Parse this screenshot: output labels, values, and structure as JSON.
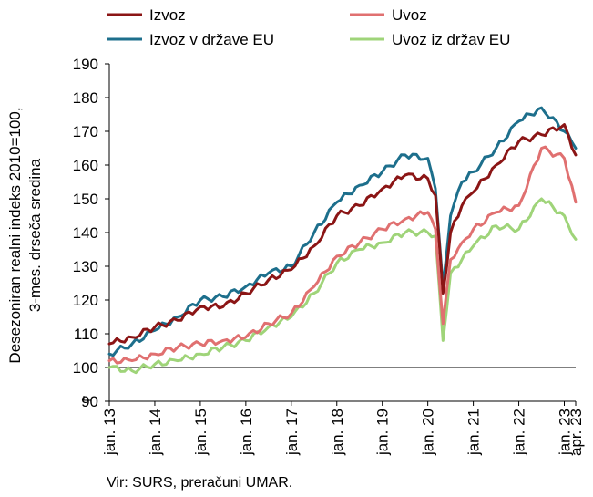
{
  "chart_data": {
    "type": "line",
    "ylabel_lines": [
      "Desezoniran realni indeks 2010=100,",
      "3-mes. drseča sredina"
    ],
    "ylim": [
      90,
      190
    ],
    "yticks": [
      90,
      100,
      110,
      120,
      130,
      140,
      150,
      160,
      170,
      180,
      190
    ],
    "x_start": "2013-01",
    "x_end": "2023-04",
    "x_ticks": [
      {
        "label": "jan. 13",
        "date": "2013-01"
      },
      {
        "label": "jan. 14",
        "date": "2014-01"
      },
      {
        "label": "jan. 15",
        "date": "2015-01"
      },
      {
        "label": "jan. 16",
        "date": "2016-01"
      },
      {
        "label": "jan. 17",
        "date": "2017-01"
      },
      {
        "label": "jan. 18",
        "date": "2018-01"
      },
      {
        "label": "jan. 19",
        "date": "2019-01"
      },
      {
        "label": "jan. 20",
        "date": "2020-01"
      },
      {
        "label": "jan. 21",
        "date": "2021-01"
      },
      {
        "label": "jan. 22",
        "date": "2022-01"
      },
      {
        "label": "jan. 23",
        "date": "2023-01"
      },
      {
        "label": "apr. 23",
        "date": "2023-04"
      }
    ],
    "reference_line": 100,
    "legend_position": "top",
    "series": [
      {
        "name": "Izvoz",
        "color": "#8b1515",
        "x_dates": [
          "2013-01",
          "2013-07",
          "2014-01",
          "2014-07",
          "2015-01",
          "2015-07",
          "2016-01",
          "2016-07",
          "2017-01",
          "2017-07",
          "2018-01",
          "2018-07",
          "2019-01",
          "2019-07",
          "2020-01",
          "2020-03",
          "2020-05",
          "2020-07",
          "2020-10",
          "2021-01",
          "2021-07",
          "2022-01",
          "2022-07",
          "2023-01",
          "2023-04"
        ],
        "values": [
          107,
          109,
          112,
          114,
          118,
          118,
          122,
          126,
          129,
          136,
          145,
          148,
          153,
          157,
          156,
          151,
          122,
          140,
          148,
          152,
          160,
          167,
          169,
          172,
          163
        ]
      },
      {
        "name": "Uvoz",
        "color": "#e07070",
        "x_dates": [
          "2013-01",
          "2013-07",
          "2014-01",
          "2014-07",
          "2015-01",
          "2015-07",
          "2016-01",
          "2016-07",
          "2017-01",
          "2017-07",
          "2018-01",
          "2018-07",
          "2019-01",
          "2019-07",
          "2020-01",
          "2020-03",
          "2020-05",
          "2020-07",
          "2020-10",
          "2021-01",
          "2021-07",
          "2022-01",
          "2022-07",
          "2023-01",
          "2023-04"
        ],
        "values": [
          102,
          102,
          104,
          106,
          107,
          108,
          109,
          113,
          116,
          124,
          133,
          137,
          141,
          144,
          146,
          141,
          113,
          132,
          137,
          141,
          146,
          148,
          165,
          162,
          149
        ]
      },
      {
        "name": "Izvoz v države EU",
        "color": "#1d6f8c",
        "x_dates": [
          "2013-01",
          "2013-07",
          "2014-01",
          "2014-07",
          "2015-01",
          "2015-07",
          "2016-01",
          "2016-07",
          "2017-01",
          "2017-07",
          "2018-01",
          "2018-07",
          "2019-01",
          "2019-07",
          "2020-01",
          "2020-03",
          "2020-05",
          "2020-07",
          "2020-10",
          "2021-01",
          "2021-07",
          "2022-01",
          "2022-07",
          "2023-01",
          "2023-04"
        ],
        "values": [
          104,
          107,
          111,
          115,
          120,
          121,
          124,
          128,
          130,
          140,
          149,
          154,
          158,
          163,
          162,
          153,
          124,
          145,
          155,
          158,
          165,
          173,
          177,
          170,
          165
        ]
      },
      {
        "name": "Uvoz iz držav EU",
        "color": "#9fd479",
        "x_dates": [
          "2013-01",
          "2013-07",
          "2014-01",
          "2014-07",
          "2015-01",
          "2015-07",
          "2016-01",
          "2016-07",
          "2017-01",
          "2017-07",
          "2018-01",
          "2018-07",
          "2019-01",
          "2019-07",
          "2020-01",
          "2020-03",
          "2020-05",
          "2020-07",
          "2020-10",
          "2021-01",
          "2021-07",
          "2022-01",
          "2022-07",
          "2023-01",
          "2023-04"
        ],
        "values": [
          100,
          99,
          101,
          102,
          104,
          106,
          108,
          112,
          115,
          122,
          131,
          135,
          137,
          140,
          140,
          139,
          108,
          128,
          132,
          136,
          142,
          141,
          150,
          145,
          138
        ]
      }
    ]
  },
  "source_text": "Vir: SURS, preračuni UMAR."
}
